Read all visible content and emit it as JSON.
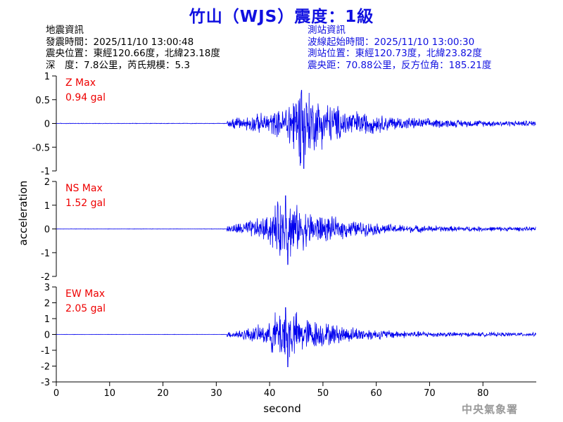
{
  "title": "竹山（WJS）震度：1級",
  "quake_info": {
    "heading": "地震資訊",
    "time": "發震時間：2025/11/10 13:00:48",
    "epicenter": "震央位置：東經120.66度，北緯23.18度",
    "depth_magnitude": "深　度：7.8公里，芮氏規模：5.3"
  },
  "station_info": {
    "heading": "測站資訊",
    "wave_start": "波線起始時間：2025/11/10 13:00:30",
    "location": "測站位置：東經120.73度，北緯23.82度",
    "distance": "震央距：70.88公里，反方位角：185.21度"
  },
  "credit": "中央氣象署",
  "colors": {
    "title": "#1010e0",
    "trace": "#0000ee",
    "max_label": "#ee0000",
    "station_text": "#1010e0"
  },
  "chart_data": [
    {
      "type": "line",
      "component": "Z",
      "max_label": "Z Max",
      "max_value": "0.94 gal",
      "ylim": [
        -1,
        1
      ],
      "yticks": [
        -1,
        -0.5,
        0,
        0.5,
        1
      ],
      "ytick_labels": [
        "-1",
        "-0.5",
        "0",
        "0.5",
        "1"
      ],
      "xlim": [
        0,
        90
      ],
      "onset_s": 32,
      "peak_s": 46,
      "peak_up": 0.7,
      "peak_down": -0.95,
      "coda_level": 0.05
    },
    {
      "type": "line",
      "component": "NS",
      "max_label": "NS Max",
      "max_value": "1.52 gal",
      "ylim": [
        -2,
        2
      ],
      "yticks": [
        -2,
        -1,
        0,
        1,
        2
      ],
      "ytick_labels": [
        "-2",
        "-1",
        "0",
        "1",
        "2"
      ],
      "xlim": [
        0,
        90
      ],
      "onset_s": 32,
      "peak_s": 43,
      "peak_up": 1.4,
      "peak_down": -1.5,
      "coda_level": 0.08
    },
    {
      "type": "line",
      "component": "EW",
      "max_label": "EW Max",
      "max_value": "2.05 gal",
      "ylim": [
        -3,
        3
      ],
      "yticks": [
        -3,
        -2,
        -1,
        0,
        1,
        2,
        3
      ],
      "ytick_labels": [
        "-3",
        "-2",
        "-1",
        "0",
        "1",
        "2",
        "3"
      ],
      "xlim": [
        0,
        90
      ],
      "onset_s": 32,
      "peak_s": 43,
      "peak_up": 1.7,
      "peak_down": -2.05,
      "coda_level": 0.1
    }
  ],
  "x_axis": {
    "label": "second",
    "ticks": [
      0,
      10,
      20,
      30,
      40,
      50,
      60,
      70,
      80
    ],
    "tick_labels": [
      "0",
      "10",
      "20",
      "30",
      "40",
      "50",
      "60",
      "70",
      "80"
    ]
  },
  "y_axis_label": "acceleration"
}
